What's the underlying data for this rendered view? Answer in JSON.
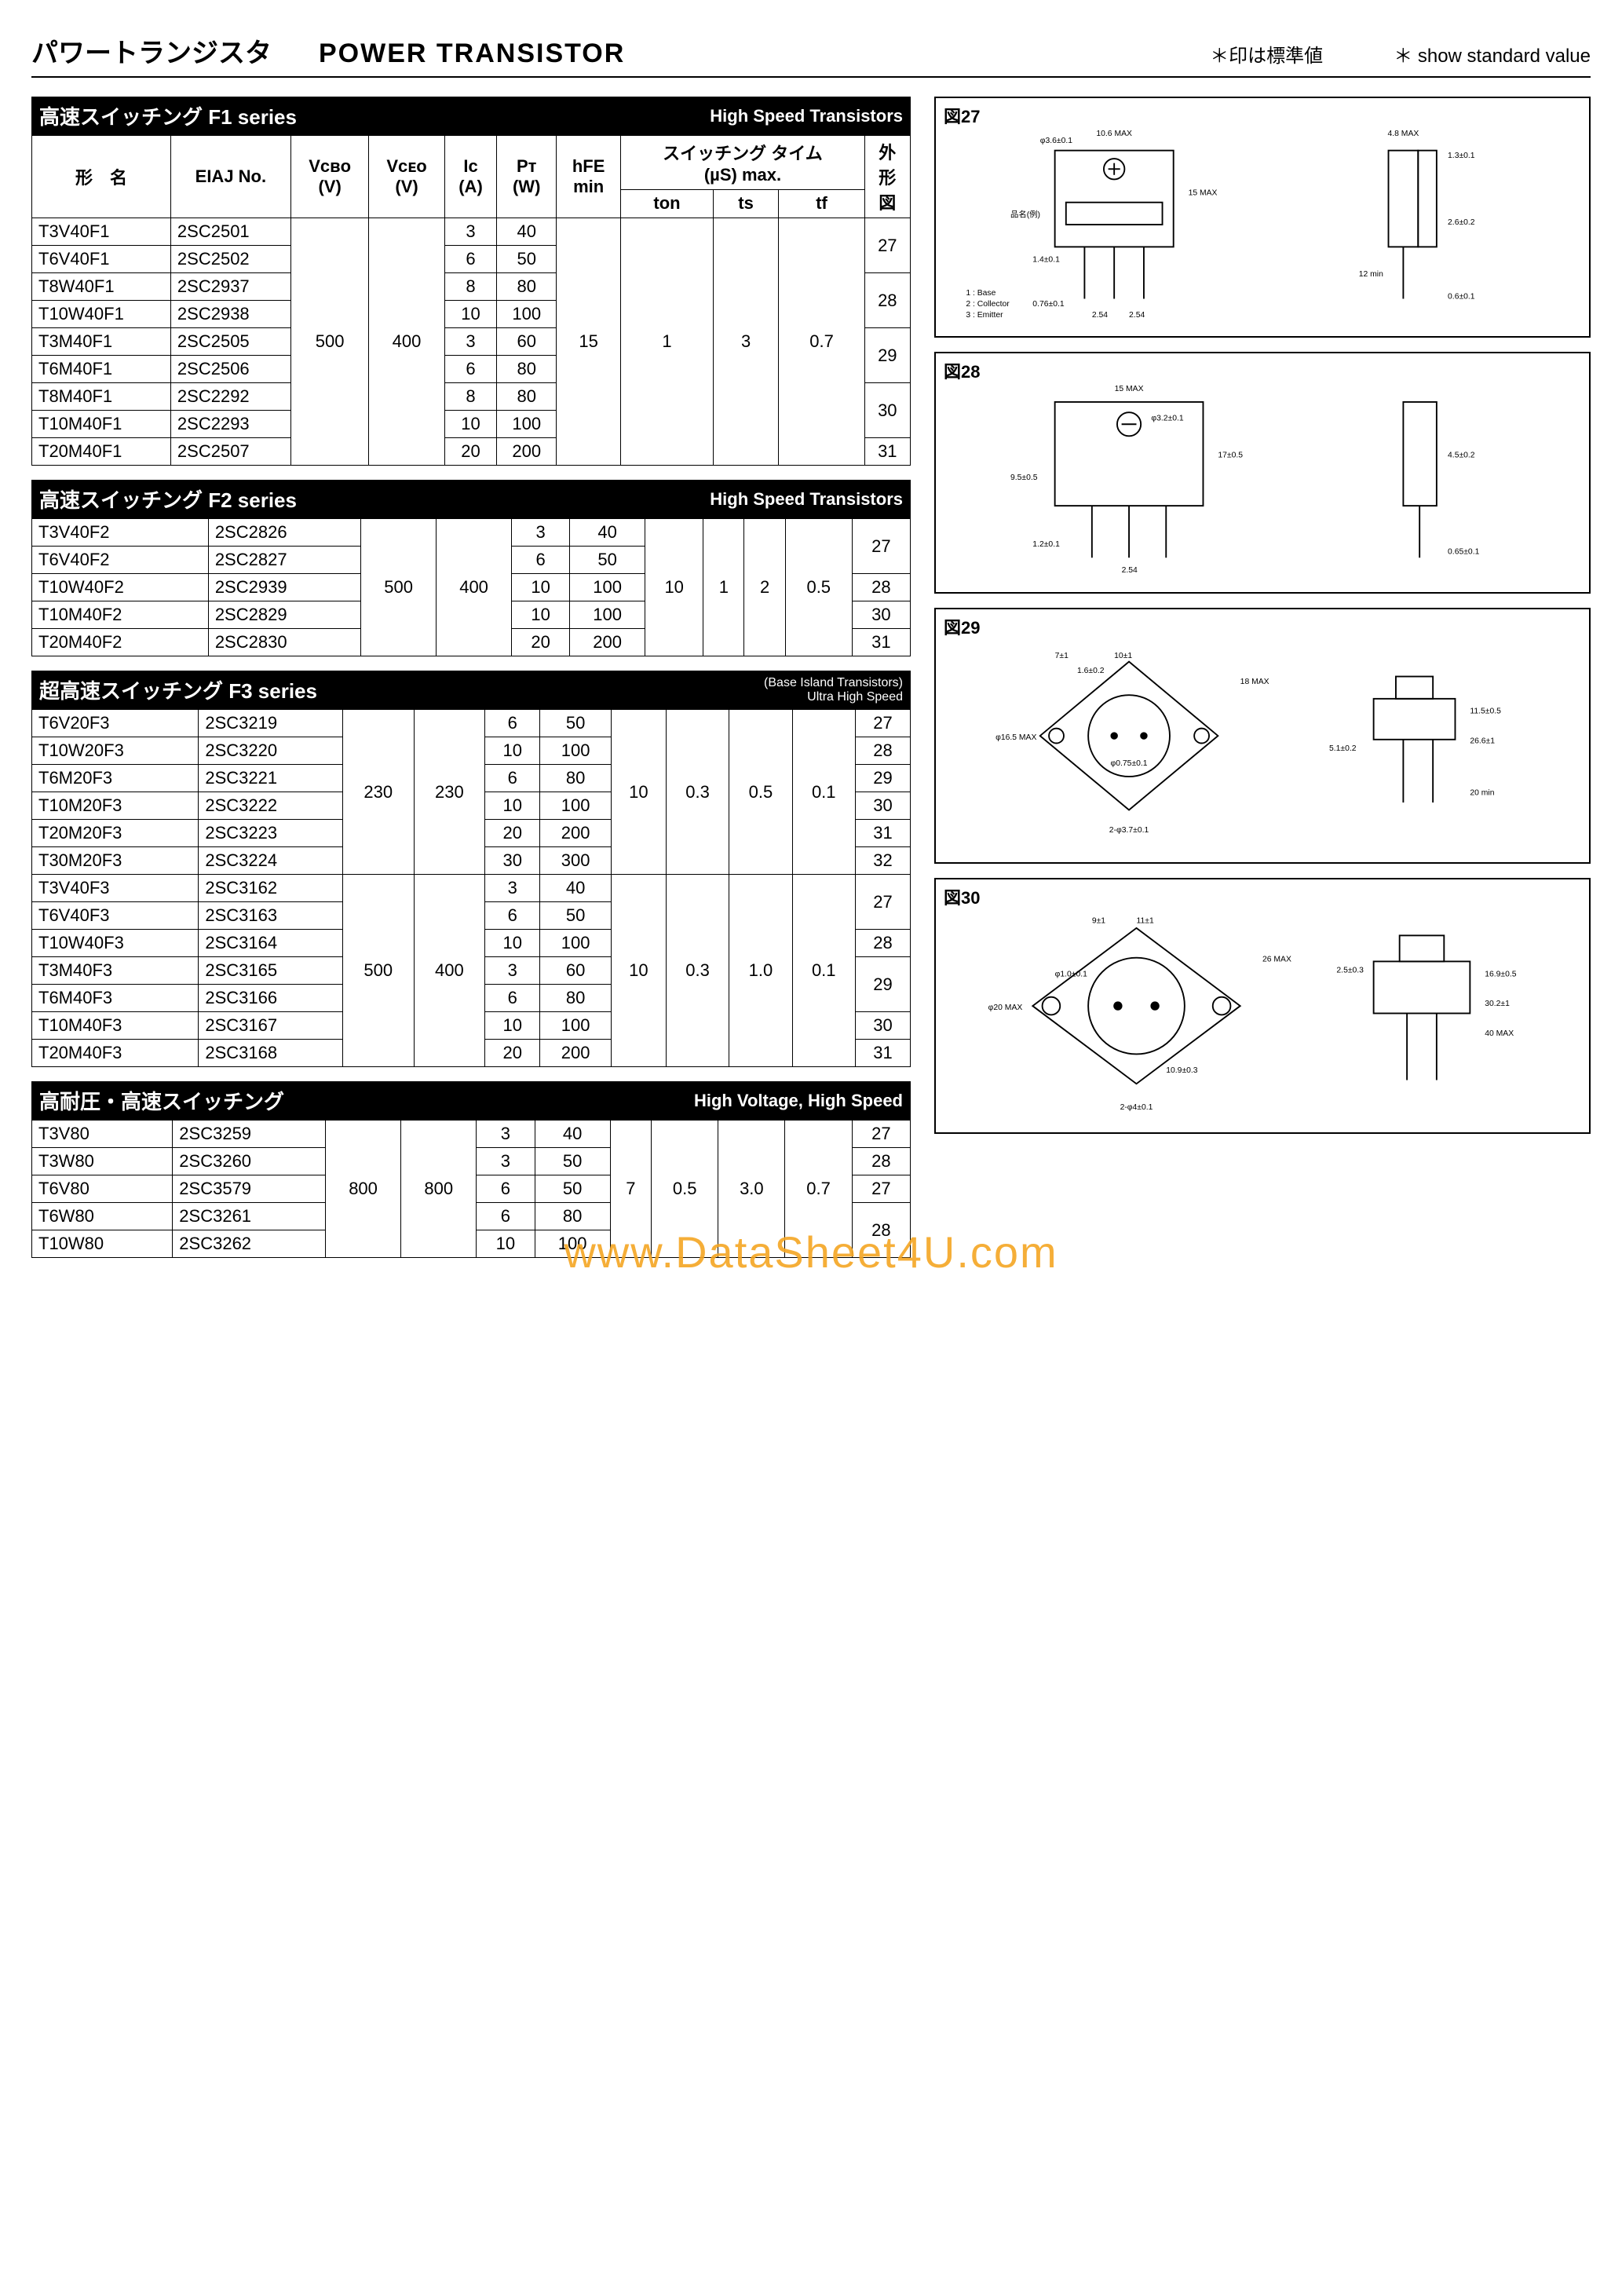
{
  "header": {
    "title_jp": "パワートランジスタ",
    "title_en": "POWER TRANSISTOR",
    "note_jp": "＊印は標準値",
    "note_en": "＊ show standard value"
  },
  "columns": {
    "model": "形　名",
    "eiaj": "EIAJ No.",
    "vcbo": "Vcʙᴏ\n(V)",
    "vceo": "Vcᴇᴏ\n(V)",
    "ic": "Ic\n(A)",
    "pt": "Pᴛ\n(W)",
    "hfe": "hFE\nmin",
    "sw": "スイッチング タイム\n(µS)    max.",
    "ton": "ton",
    "ts": "ts",
    "tf": "tf",
    "pkg": "外\n形\n図"
  },
  "sections": [
    {
      "bar_left": "高速スイッチング F1 series",
      "bar_right": "High Speed Transistors",
      "show_header": true,
      "groups": [
        {
          "vcbo": "500",
          "vceo": "400",
          "hfe": "15",
          "ton": "1",
          "ts": "3",
          "tf": "0.7",
          "rows": [
            {
              "model": "T3V40F1",
              "eiaj": "2SC2501",
              "ic": "3",
              "pt": "40",
              "pkg": "27"
            },
            {
              "model": "T6V40F1",
              "eiaj": "2SC2502",
              "ic": "6",
              "pt": "50",
              "pkg": "27"
            },
            {
              "model": "T8W40F1",
              "eiaj": "2SC2937",
              "ic": "8",
              "pt": "80",
              "pkg": "28"
            },
            {
              "model": "T10W40F1",
              "eiaj": "2SC2938",
              "ic": "10",
              "pt": "100",
              "pkg": "28"
            },
            {
              "model": "T3M40F1",
              "eiaj": "2SC2505",
              "ic": "3",
              "pt": "60",
              "pkg": "29"
            },
            {
              "model": "T6M40F1",
              "eiaj": "2SC2506",
              "ic": "6",
              "pt": "80",
              "pkg": "29"
            },
            {
              "model": "T8M40F1",
              "eiaj": "2SC2292",
              "ic": "8",
              "pt": "80",
              "pkg": "30"
            },
            {
              "model": "T10M40F1",
              "eiaj": "2SC2293",
              "ic": "10",
              "pt": "100",
              "pkg": "30"
            },
            {
              "model": "T20M40F1",
              "eiaj": "2SC2507",
              "ic": "20",
              "pt": "200",
              "pkg": "31"
            }
          ]
        }
      ]
    },
    {
      "bar_left": "高速スイッチング F2 series",
      "bar_right": "High Speed Transistors",
      "show_header": false,
      "groups": [
        {
          "vcbo": "500",
          "vceo": "400",
          "hfe": "10",
          "ton": "1",
          "ts": "2",
          "tf": "0.5",
          "rows": [
            {
              "model": "T3V40F2",
              "eiaj": "2SC2826",
              "ic": "3",
              "pt": "40",
              "pkg": "27"
            },
            {
              "model": "T6V40F2",
              "eiaj": "2SC2827",
              "ic": "6",
              "pt": "50",
              "pkg": "27"
            },
            {
              "model": "T10W40F2",
              "eiaj": "2SC2939",
              "ic": "10",
              "pt": "100",
              "pkg": "28"
            },
            {
              "model": "T10M40F2",
              "eiaj": "2SC2829",
              "ic": "10",
              "pt": "100",
              "pkg": "30"
            },
            {
              "model": "T20M40F2",
              "eiaj": "2SC2830",
              "ic": "20",
              "pt": "200",
              "pkg": "31"
            }
          ]
        }
      ]
    },
    {
      "bar_left": "超高速スイッチング F3 series",
      "bar_right": "(Base Island Transistors)\nUltra High Speed",
      "show_header": false,
      "groups": [
        {
          "vcbo": "230",
          "vceo": "230",
          "hfe": "10",
          "ton": "0.3",
          "ts": "0.5",
          "tf": "0.1",
          "rows": [
            {
              "model": "T6V20F3",
              "eiaj": "2SC3219",
              "ic": "6",
              "pt": "50",
              "pkg": "27"
            },
            {
              "model": "T10W20F3",
              "eiaj": "2SC3220",
              "ic": "10",
              "pt": "100",
              "pkg": "28"
            },
            {
              "model": "T6M20F3",
              "eiaj": "2SC3221",
              "ic": "6",
              "pt": "80",
              "pkg": "29"
            },
            {
              "model": "T10M20F3",
              "eiaj": "2SC3222",
              "ic": "10",
              "pt": "100",
              "pkg": "30"
            },
            {
              "model": "T20M20F3",
              "eiaj": "2SC3223",
              "ic": "20",
              "pt": "200",
              "pkg": "31"
            },
            {
              "model": "T30M20F3",
              "eiaj": "2SC3224",
              "ic": "30",
              "pt": "300",
              "pkg": "32"
            }
          ]
        },
        {
          "vcbo": "500",
          "vceo": "400",
          "hfe": "10",
          "ton": "0.3",
          "ts": "1.0",
          "tf": "0.1",
          "rows": [
            {
              "model": "T3V40F3",
              "eiaj": "2SC3162",
              "ic": "3",
              "pt": "40",
              "pkg": "27"
            },
            {
              "model": "T6V40F3",
              "eiaj": "2SC3163",
              "ic": "6",
              "pt": "50",
              "pkg": "27"
            },
            {
              "model": "T10W40F3",
              "eiaj": "2SC3164",
              "ic": "10",
              "pt": "100",
              "pkg": "28"
            },
            {
              "model": "T3M40F3",
              "eiaj": "2SC3165",
              "ic": "3",
              "pt": "60",
              "pkg": "29"
            },
            {
              "model": "T6M40F3",
              "eiaj": "2SC3166",
              "ic": "6",
              "pt": "80",
              "pkg": "29"
            },
            {
              "model": "T10M40F3",
              "eiaj": "2SC3167",
              "ic": "10",
              "pt": "100",
              "pkg": "30"
            },
            {
              "model": "T20M40F3",
              "eiaj": "2SC3168",
              "ic": "20",
              "pt": "200",
              "pkg": "31"
            }
          ]
        }
      ]
    },
    {
      "bar_left": "高耐圧・高速スイッチング",
      "bar_right": "High Voltage, High Speed",
      "show_header": false,
      "groups": [
        {
          "vcbo": "800",
          "vceo": "800",
          "hfe": "7",
          "ton": "0.5",
          "ts": "3.0",
          "tf": "0.7",
          "rows": [
            {
              "model": "T3V80",
              "eiaj": "2SC3259",
              "ic": "3",
              "pt": "40",
              "pkg": "27"
            },
            {
              "model": "T3W80",
              "eiaj": "2SC3260",
              "ic": "3",
              "pt": "50",
              "pkg": "28"
            },
            {
              "model": "T6V80",
              "eiaj": "2SC3579",
              "ic": "6",
              "pt": "50",
              "pkg": "27"
            },
            {
              "model": "T6W80",
              "eiaj": "2SC3261",
              "ic": "6",
              "pt": "80",
              "pkg": "28"
            },
            {
              "model": "T10W80",
              "eiaj": "2SC3262",
              "ic": "10",
              "pt": "100",
              "pkg": "28"
            }
          ]
        }
      ]
    }
  ],
  "figures": [
    {
      "title": "図27",
      "pkg_type": "TO-220 style",
      "dims": {
        "hole_dia": "φ3.6±0.1",
        "top_w": "10.6 MAX",
        "height": "15 MAX",
        "tab_r": "品名(例)",
        "pin_left": "1.4±0.1",
        "pin_bot": "0.76±0.1",
        "pin_pitch_a": "2.54",
        "pin_pitch_b": "2.54",
        "side_w": "4.8 MAX",
        "side_t": "1.3±0.1",
        "side_body": "2.6±0.2",
        "side_lead": "0.6±0.1",
        "lead_len": "12 min"
      },
      "pin_legend": {
        "1": "Base",
        "2": "Collector",
        "3": "Emitter"
      }
    },
    {
      "title": "図28",
      "pkg_type": "TO-220F / ISO style",
      "dims": {
        "top_w": "15 MAX",
        "hole_dia": "φ3.2±0.1",
        "body_h": "17±0.5",
        "shoulder": "9.5±0.5",
        "lead_w": "1.2±0.1",
        "pitch": "2.54",
        "thickness": "4.5±0.2",
        "lead_t": "0.65±0.1"
      }
    },
    {
      "title": "図29",
      "pkg_type": "TO-3 metal can",
      "dims": {
        "body_w": "18 MAX",
        "hole_sp": "10±1",
        "lead_dia": "φ0.75±0.1",
        "flange_dia": "φ16.5 MAX",
        "body_h": "7±1",
        "lead_pitch": "1.6±0.2",
        "mount_holes": "2-φ3.7±0.1",
        "seat_h": "5.1±0.2",
        "can_h": "11.5±0.5",
        "overall_h": "26.6±1",
        "pin_len": "20 min"
      }
    },
    {
      "title": "図30",
      "pkg_type": "TO-3P / large can",
      "dims": {
        "lead_sp": "9±1",
        "lead_pitch": "11±1",
        "flange_w": "26 MAX",
        "lead_dia": "φ1.0±0.1",
        "body_dia": "φ20 MAX",
        "mount_holes": "2-φ4±0.1",
        "seat": "2.5±0.3",
        "body_h": "16.9±0.5",
        "overall": "30.2±1",
        "can": "40 MAX",
        "hole_ctr": "10.9±0.3"
      }
    }
  ],
  "watermark": "www.DataSheet4U.com",
  "style": {
    "colors": {
      "bg": "#ffffff",
      "text": "#000000",
      "bar_bg": "#000000",
      "bar_text": "#ffffff",
      "border": "#000000",
      "watermark": "#f5a623"
    },
    "font_sizes": {
      "header": 34,
      "bar": 26,
      "table": 22,
      "fig_dim": 11
    }
  }
}
